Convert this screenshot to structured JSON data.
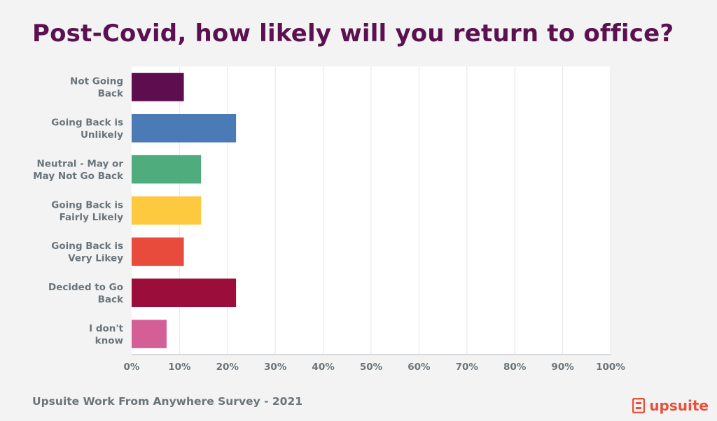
{
  "chart_data": {
    "type": "bar",
    "orientation": "horizontal",
    "title": "Post-Covid, how likely will you return to office?",
    "categories": [
      [
        "Not Going",
        "Back"
      ],
      [
        "Going Back is",
        "Unlikely"
      ],
      [
        "Neutral - May or",
        "May Not Go Back"
      ],
      [
        "Going Back is",
        "Fairly Likely"
      ],
      [
        "Going Back is",
        "Very Likey"
      ],
      [
        "Decided to Go",
        "Back"
      ],
      [
        "I don't",
        "know"
      ]
    ],
    "values": [
      10.9,
      21.8,
      14.5,
      14.5,
      10.9,
      21.8,
      7.3
    ],
    "colors": [
      "#5e0d4f",
      "#4a7bb7",
      "#4fac7c",
      "#fdc93e",
      "#e84a3c",
      "#9b0d3a",
      "#d45f96"
    ],
    "xlim": [
      0,
      100
    ],
    "xticks": [
      "0%",
      "10%",
      "20%",
      "30%",
      "40%",
      "50%",
      "60%",
      "70%",
      "80%",
      "90%",
      "100%"
    ],
    "grid": true
  },
  "footer": {
    "source": "Upsuite Work From Anywhere Survey - 2021"
  },
  "brand": {
    "name": "upsuite",
    "icon": "upsuite-logo-icon",
    "color": "#e8503a"
  }
}
